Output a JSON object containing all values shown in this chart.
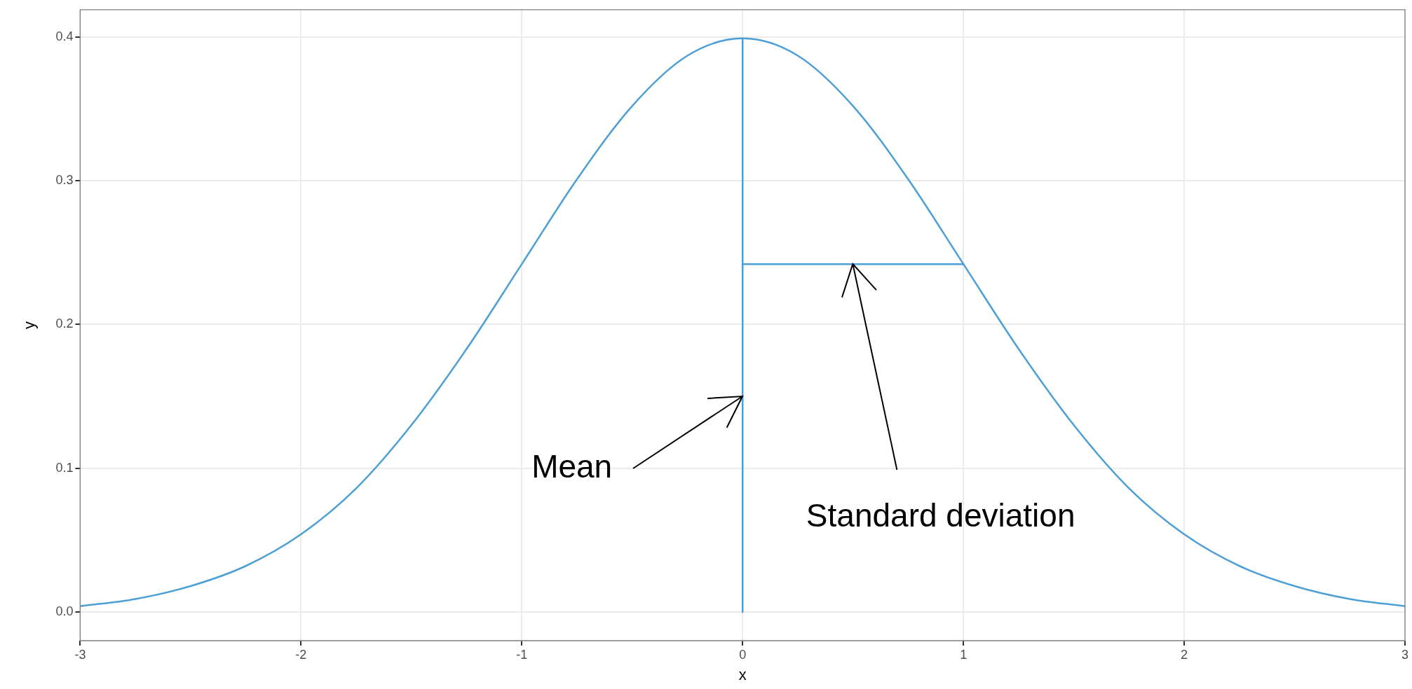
{
  "chart_data": {
    "type": "line",
    "xlabel": "x",
    "ylabel": "y",
    "series": [
      {
        "color": "#4b9fd5",
        "x": [
          -3,
          -2.75,
          -2.5,
          -2.25,
          -2,
          -1.75,
          -1.5,
          -1.25,
          -1,
          -0.75,
          -0.5,
          -0.25,
          0,
          0.25,
          0.5,
          0.75,
          1,
          1.25,
          1.5,
          1.75,
          2,
          2.25,
          2.5,
          2.75,
          3
        ],
        "values": [
          0.004,
          0.009,
          0.018,
          0.032,
          0.054,
          0.086,
          0.13,
          0.183,
          0.242,
          0.301,
          0.352,
          0.387,
          0.399,
          0.387,
          0.352,
          0.301,
          0.242,
          0.183,
          0.13,
          0.086,
          0.054,
          0.032,
          0.018,
          0.009,
          0.004
        ]
      },
      {
        "color": "#4b9fd5",
        "x": [
          0,
          0
        ],
        "values": [
          0,
          0.399
        ]
      },
      {
        "color": "#4b9fd5",
        "x": [
          0,
          1
        ],
        "values": [
          0.242,
          0.242
        ]
      }
    ],
    "xlim": [
      -3,
      3
    ],
    "xticks": [
      -3,
      -2,
      -1,
      0,
      1,
      2,
      3
    ],
    "ylim": [
      -0.02,
      0.419
    ],
    "yticks": [
      {
        "value": 0,
        "label": "0.0"
      },
      0.1,
      0.2,
      0.3,
      0.4
    ],
    "grid": true,
    "legend": false,
    "marker": "none",
    "line_style": "solid",
    "annotations": [
      {
        "text": "Mean",
        "x": 0,
        "y": 0.15
      },
      {
        "text": "Standard deviation",
        "x": 0.5,
        "y": 0.242
      }
    ]
  }
}
